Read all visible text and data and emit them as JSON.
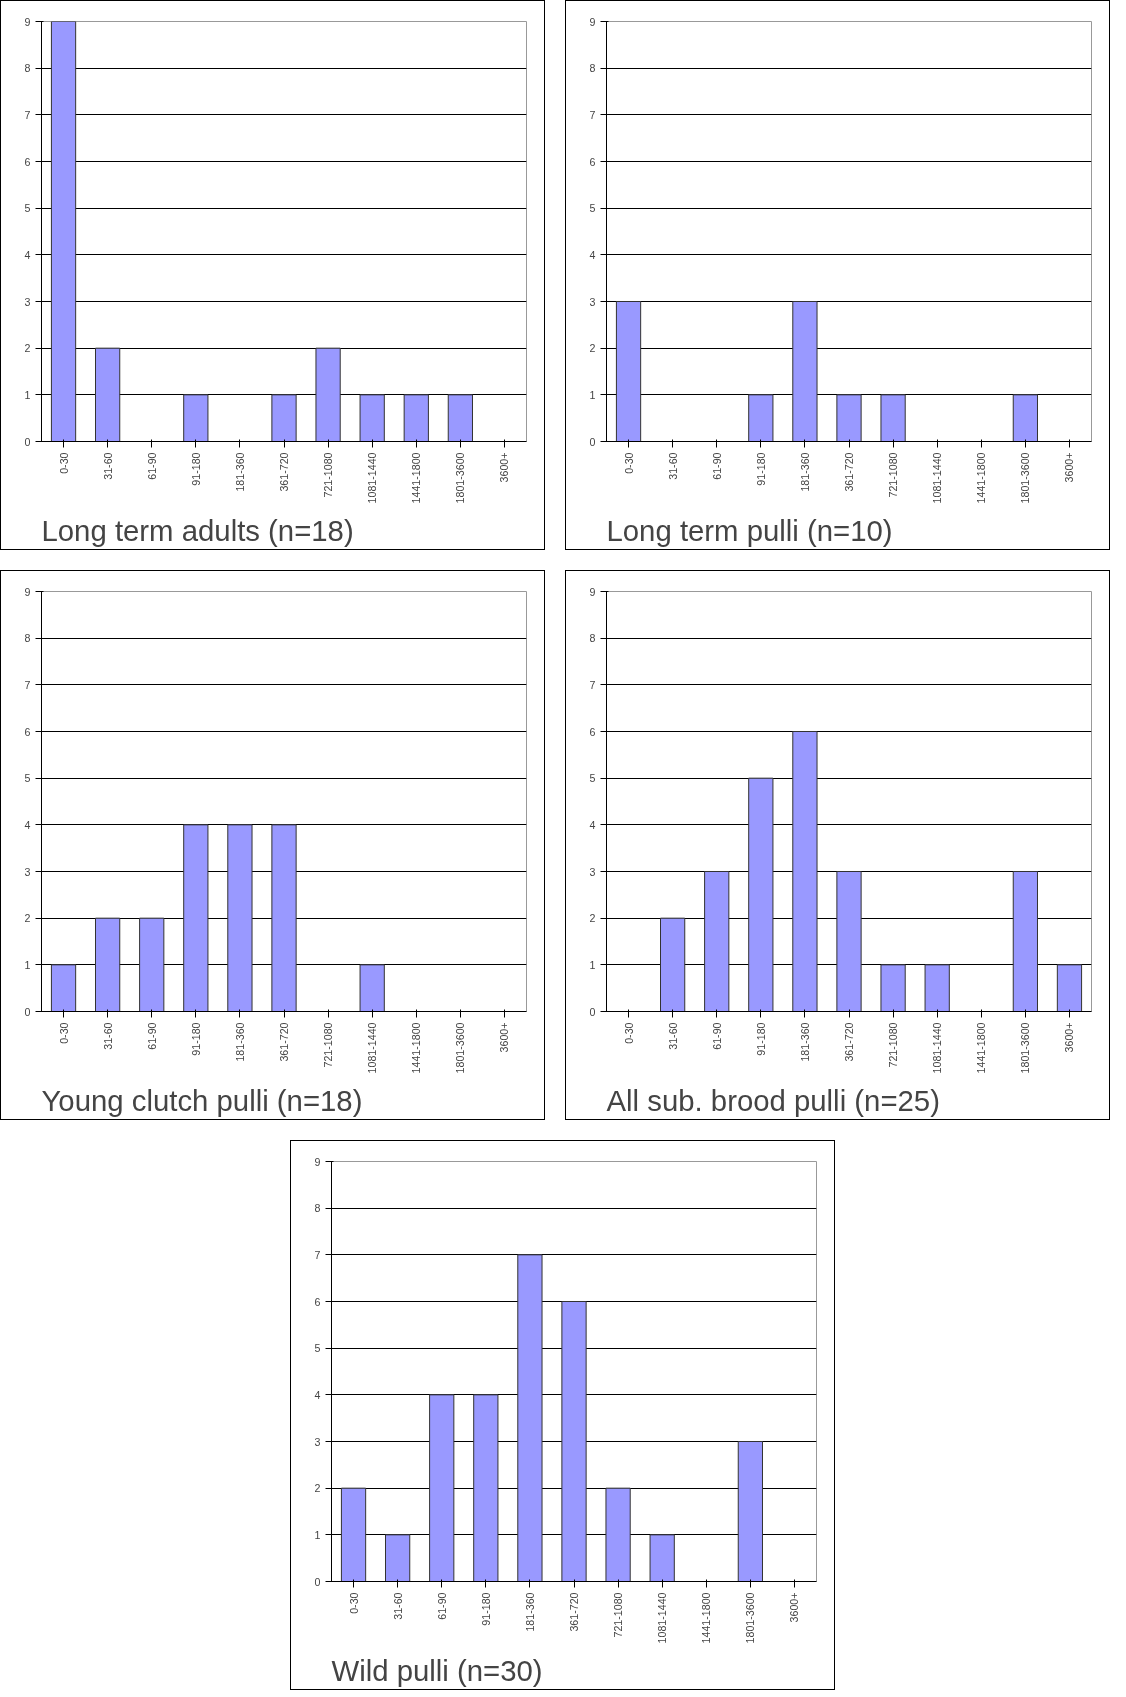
{
  "chart_data": [
    {
      "type": "bar",
      "title": "Long term adults (n=18)",
      "categories": [
        "0-30",
        "31-60",
        "61-90",
        "91-180",
        "181-360",
        "361-720",
        "721-1080",
        "1081-1440",
        "1441-1800",
        "1801-3600",
        "3600+"
      ],
      "values": [
        9,
        2,
        0,
        1,
        0,
        1,
        2,
        1,
        1,
        1,
        0
      ],
      "color": "#9999ff",
      "ylim": [
        0,
        9
      ],
      "yticks": [
        0,
        1,
        2,
        3,
        4,
        5,
        6,
        7,
        8,
        9
      ],
      "grid": "y"
    },
    {
      "type": "bar",
      "title": "Long term pulli (n=10)",
      "categories": [
        "0-30",
        "31-60",
        "61-90",
        "91-180",
        "181-360",
        "361-720",
        "721-1080",
        "1081-1440",
        "1441-1800",
        "1801-3600",
        "3600+"
      ],
      "values": [
        3,
        0,
        0,
        1,
        3,
        1,
        1,
        0,
        0,
        1,
        0
      ],
      "color": "#9999ff",
      "ylim": [
        0,
        9
      ],
      "yticks": [
        0,
        1,
        2,
        3,
        4,
        5,
        6,
        7,
        8,
        9
      ],
      "grid": "y"
    },
    {
      "type": "bar",
      "title": "Young clutch pulli (n=18)",
      "categories": [
        "0-30",
        "31-60",
        "61-90",
        "91-180",
        "181-360",
        "361-720",
        "721-1080",
        "1081-1440",
        "1441-1800",
        "1801-3600",
        "3600+"
      ],
      "values": [
        1,
        2,
        2,
        4,
        4,
        4,
        0,
        1,
        0,
        0,
        0
      ],
      "color": "#9999ff",
      "ylim": [
        0,
        9
      ],
      "yticks": [
        0,
        1,
        2,
        3,
        4,
        5,
        6,
        7,
        8,
        9
      ],
      "grid": "y"
    },
    {
      "type": "bar",
      "title": "All sub. brood pulli (n=25)",
      "categories": [
        "0-30",
        "31-60",
        "61-90",
        "91-180",
        "181-360",
        "361-720",
        "721-1080",
        "1081-1440",
        "1441-1800",
        "1801-3600",
        "3600+"
      ],
      "values": [
        0,
        2,
        3,
        5,
        6,
        3,
        1,
        1,
        0,
        3,
        1
      ],
      "color": "#9999ff",
      "ylim": [
        0,
        9
      ],
      "yticks": [
        0,
        1,
        2,
        3,
        4,
        5,
        6,
        7,
        8,
        9
      ],
      "grid": "y"
    },
    {
      "type": "bar",
      "title": "Wild pulli (n=30)",
      "categories": [
        "0-30",
        "31-60",
        "61-90",
        "91-180",
        "181-360",
        "361-720",
        "721-1080",
        "1081-1440",
        "1441-1800",
        "1801-3600",
        "3600+"
      ],
      "values": [
        2,
        1,
        4,
        4,
        7,
        6,
        2,
        1,
        0,
        3,
        0
      ],
      "color": "#9999ff",
      "ylim": [
        0,
        9
      ],
      "yticks": [
        0,
        1,
        2,
        3,
        4,
        5,
        6,
        7,
        8,
        9
      ],
      "grid": "y"
    }
  ]
}
